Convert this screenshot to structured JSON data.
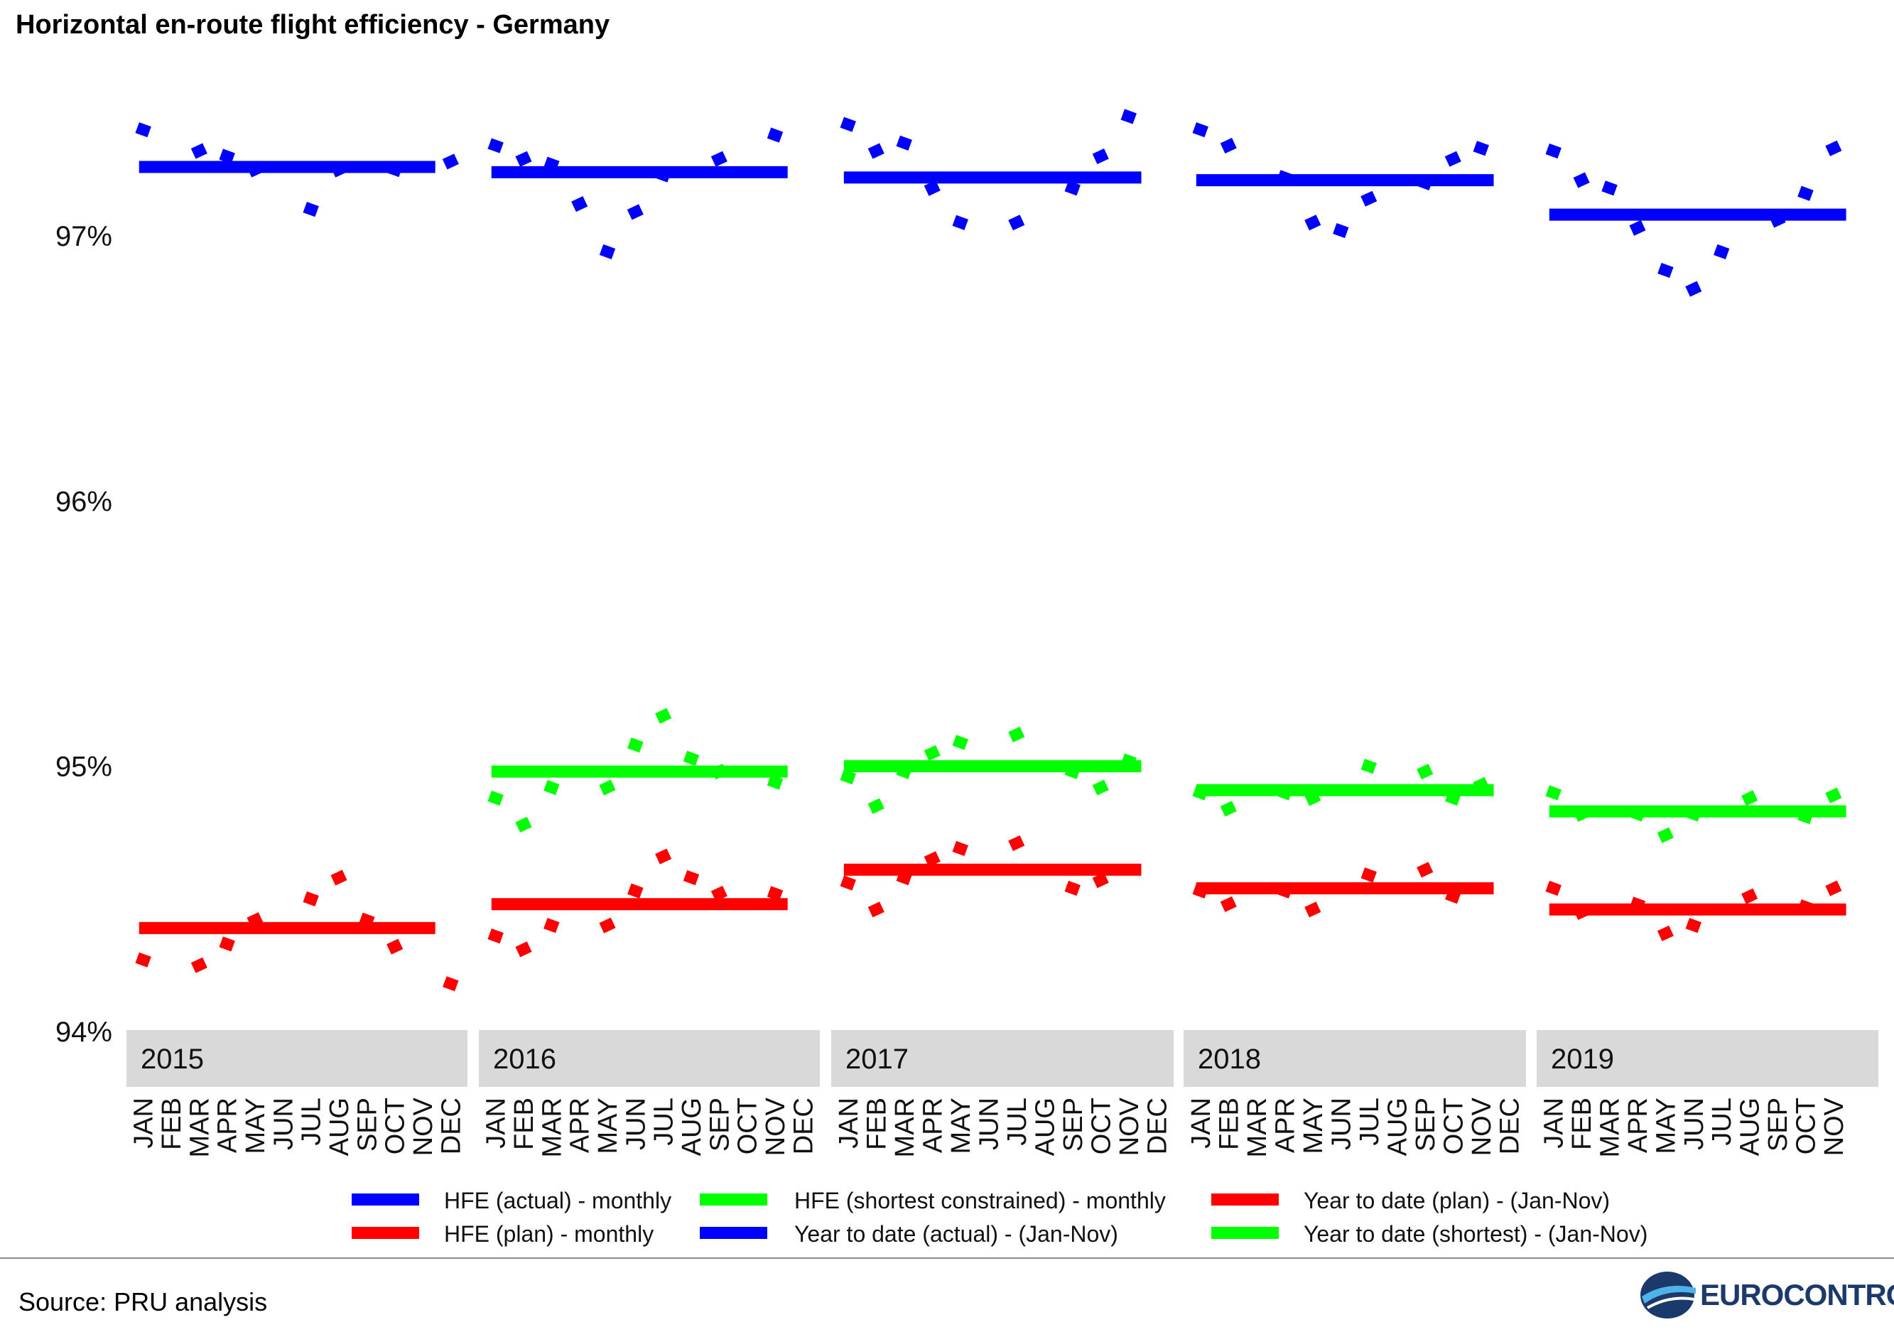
{
  "chart_data": {
    "type": "line",
    "title": "Horizontal en-route flight efficiency - Germany",
    "y_axis": {
      "ticks": [
        94,
        95,
        96,
        97
      ],
      "tick_labels": [
        "94%",
        "95%",
        "96%",
        "97%"
      ],
      "ylim": [
        94.0,
        97.5
      ]
    },
    "grid": false,
    "legend_position": "bottom",
    "panels": [
      {
        "label": "2015",
        "months": [
          "JAN",
          "FEB",
          "MAR",
          "APR",
          "MAY",
          "JUN",
          "JUL",
          "AUG",
          "SEP",
          "OCT",
          "NOV",
          "DEC"
        ],
        "actual_monthly": [
          97.4,
          97.32,
          97.3,
          97.25,
          97.1,
          97.25,
          97.25,
          97.28
        ],
        "actual_monthly_months": [
          "JAN",
          "MAR",
          "APR",
          "MAY",
          "JUL",
          "AUG",
          "OCT",
          "DEC"
        ],
        "actual_ytd": 97.26,
        "shortest_monthly": [],
        "shortest_ytd": null,
        "plan_monthly": [
          94.27,
          94.25,
          94.33,
          94.42,
          94.5,
          94.58,
          94.42,
          94.32,
          94.18
        ],
        "plan_monthly_months": [
          "JAN",
          "MAR",
          "APR",
          "MAY",
          "JUL",
          "AUG",
          "SEP",
          "OCT",
          "DEC"
        ],
        "plan_ytd": 94.39
      },
      {
        "label": "2016",
        "months": [
          "JAN",
          "FEB",
          "MAR",
          "APR",
          "MAY",
          "JUN",
          "JUL",
          "AUG",
          "SEP",
          "OCT",
          "NOV",
          "DEC"
        ],
        "actual_monthly": [
          97.34,
          97.29,
          97.27,
          97.12,
          96.94,
          97.09,
          97.23,
          97.29,
          97.38
        ],
        "actual_monthly_months": [
          "JAN",
          "FEB",
          "MAR",
          "APR",
          "MAY",
          "JUN",
          "JUL",
          "SEP",
          "NOV"
        ],
        "actual_ytd": 97.24,
        "shortest_monthly": [
          94.88,
          94.78,
          94.92,
          94.92,
          95.08,
          95.19,
          95.03,
          94.98,
          94.94
        ],
        "shortest_monthly_months": [
          "JAN",
          "FEB",
          "MAR",
          "MAY",
          "JUN",
          "JUL",
          "AUG",
          "SEP",
          "NOV"
        ],
        "shortest_ytd": 94.98,
        "plan_monthly": [
          94.36,
          94.31,
          94.4,
          94.4,
          94.53,
          94.66,
          94.58,
          94.52,
          94.52
        ],
        "plan_monthly_months": [
          "JAN",
          "FEB",
          "MAR",
          "MAY",
          "JUN",
          "JUL",
          "AUG",
          "SEP",
          "NOV"
        ],
        "plan_ytd": 94.48
      },
      {
        "label": "2017",
        "months": [
          "JAN",
          "FEB",
          "MAR",
          "APR",
          "MAY",
          "JUN",
          "JUL",
          "AUG",
          "SEP",
          "OCT",
          "NOV",
          "DEC"
        ],
        "actual_monthly": [
          97.42,
          97.32,
          97.35,
          97.18,
          97.05,
          97.05,
          97.18,
          97.3,
          97.45
        ],
        "actual_monthly_months": [
          "JAN",
          "FEB",
          "MAR",
          "APR",
          "MAY",
          "JUL",
          "SEP",
          "OCT",
          "NOV"
        ],
        "actual_ytd": 97.22,
        "shortest_monthly": [
          94.96,
          94.85,
          94.98,
          95.05,
          95.09,
          95.12,
          94.98,
          94.92,
          95.02
        ],
        "shortest_monthly_months": [
          "JAN",
          "FEB",
          "MAR",
          "APR",
          "MAY",
          "JUL",
          "SEP",
          "OCT",
          "NOV"
        ],
        "shortest_ytd": 95.0,
        "plan_monthly": [
          94.56,
          94.46,
          94.58,
          94.65,
          94.69,
          94.71,
          94.54,
          94.57
        ],
        "plan_monthly_months": [
          "JAN",
          "FEB",
          "MAR",
          "APR",
          "MAY",
          "JUL",
          "SEP",
          "OCT"
        ],
        "plan_ytd": 94.61
      },
      {
        "label": "2018",
        "months": [
          "JAN",
          "FEB",
          "MAR",
          "APR",
          "MAY",
          "JUN",
          "JUL",
          "AUG",
          "SEP",
          "OCT",
          "NOV",
          "DEC"
        ],
        "actual_monthly": [
          97.4,
          97.34,
          97.22,
          97.05,
          97.02,
          97.14,
          97.2,
          97.29,
          97.33
        ],
        "actual_monthly_months": [
          "JAN",
          "FEB",
          "APR",
          "MAY",
          "JUN",
          "JUL",
          "SEP",
          "OCT",
          "NOV"
        ],
        "actual_ytd": 97.21,
        "shortest_monthly": [
          94.9,
          94.84,
          94.9,
          94.88,
          95.0,
          94.98,
          94.88,
          94.93
        ],
        "shortest_monthly_months": [
          "JAN",
          "FEB",
          "APR",
          "MAY",
          "JUL",
          "SEP",
          "OCT",
          "NOV"
        ],
        "shortest_ytd": 94.91,
        "plan_monthly": [
          94.53,
          94.48,
          94.53,
          94.46,
          94.59,
          94.61,
          94.51
        ],
        "plan_monthly_months": [
          "JAN",
          "FEB",
          "APR",
          "MAY",
          "JUL",
          "SEP",
          "OCT"
        ],
        "plan_ytd": 94.54
      },
      {
        "label": "2019",
        "months": [
          "JAN",
          "FEB",
          "MAR",
          "APR",
          "MAY",
          "JUN",
          "JUL",
          "AUG",
          "SEP",
          "OCT",
          "NOV"
        ],
        "actual_monthly": [
          97.32,
          97.21,
          97.18,
          97.03,
          96.87,
          96.8,
          96.94,
          97.06,
          97.16,
          97.33
        ],
        "actual_monthly_months": [
          "JAN",
          "FEB",
          "MAR",
          "APR",
          "MAY",
          "JUN",
          "JUL",
          "SEP",
          "OCT",
          "NOV"
        ],
        "actual_ytd": 97.08,
        "shortest_monthly": [
          94.9,
          94.82,
          94.82,
          94.74,
          94.82,
          94.88,
          94.81,
          94.89
        ],
        "shortest_monthly_months": [
          "JAN",
          "FEB",
          "APR",
          "MAY",
          "JUN",
          "AUG",
          "OCT",
          "NOV"
        ],
        "shortest_ytd": 94.83,
        "plan_monthly": [
          94.54,
          94.45,
          94.48,
          94.37,
          94.4,
          94.51,
          94.47,
          94.54
        ],
        "plan_monthly_months": [
          "JAN",
          "FEB",
          "APR",
          "MAY",
          "JUN",
          "AUG",
          "OCT",
          "NOV"
        ],
        "plan_ytd": 94.46
      }
    ],
    "legend": [
      {
        "key": "actual_monthly",
        "label": "HFE (actual) - monthly",
        "color": "#0000ff"
      },
      {
        "key": "plan_monthly",
        "label": "HFE (plan) - monthly",
        "color": "#ff0000"
      },
      {
        "key": "shortest_monthly",
        "label": "HFE (shortest constrained) - monthly",
        "color": "#00ff00"
      },
      {
        "key": "actual_ytd",
        "label": "Year to date (actual) - (Jan-Nov)",
        "color": "#0000ff"
      },
      {
        "key": "plan_ytd",
        "label": "Year to date (plan) - (Jan-Nov)",
        "color": "#ff0000"
      },
      {
        "key": "shortest_ytd",
        "label": "Year to date (shortest) - (Jan-Nov)",
        "color": "#00ff00"
      }
    ],
    "colors": {
      "actual": "#0000ff",
      "plan": "#ff0000",
      "shortest": "#00ff00",
      "strip": "#d9d9d9"
    }
  },
  "footer": {
    "source": "Source: PRU analysis",
    "logo_text": "EUROCONTROL"
  }
}
